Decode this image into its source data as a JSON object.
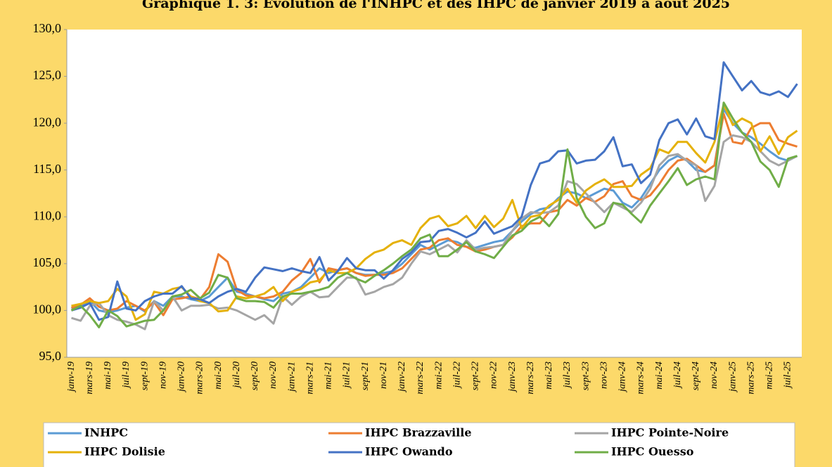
{
  "chart_data": {
    "type": "line",
    "title": "Graphique 1. 3: Evolution de l'INHPC et des IHPC de janvier 2019 à août 2025",
    "categories": [
      "janv-19",
      null,
      "mars-19",
      null,
      "mai-19",
      null,
      "juil-19",
      null,
      "sept-19",
      null,
      "nov-19",
      null,
      "janv-20",
      null,
      "mars-20",
      null,
      "mai-20",
      null,
      "juil-20",
      null,
      "sept-20",
      null,
      "nov-20",
      null,
      "janv-21",
      null,
      "mars-21",
      null,
      "mai-21",
      null,
      "juil-21",
      null,
      "sept-21",
      null,
      "nov-21",
      null,
      "janv-22",
      null,
      "mars-22",
      null,
      "mai-22",
      null,
      "juil-22",
      null,
      "sept-22",
      null,
      "nov-22",
      null,
      "janv-23",
      null,
      "mars-23",
      null,
      "mai-23",
      null,
      "juil-23",
      null,
      "sept-23",
      null,
      "nov-23",
      null,
      "janv-24",
      null,
      "mars-24",
      null,
      "mai-24",
      null,
      "juil-24",
      null,
      "sept-24",
      null,
      "nov-24",
      null,
      "janv-25",
      null,
      "mars-25",
      null,
      "mai-25",
      null,
      "juil-25",
      null
    ],
    "series": [
      {
        "name": "INHPC",
        "color": "#5b9bd5",
        "values": [
          100.2,
          100.5,
          101.0,
          100.0,
          99.8,
          100.0,
          100.3,
          100.5,
          99.9,
          101.0,
          100.5,
          101.5,
          101.5,
          101.2,
          101.0,
          101.5,
          102.5,
          103.5,
          102.0,
          101.8,
          101.5,
          101.2,
          101.0,
          101.8,
          102.0,
          102.5,
          103.5,
          104.5,
          104.0,
          104.3,
          104.5,
          104.0,
          103.8,
          103.8,
          104.0,
          104.2,
          105.0,
          106.0,
          107.0,
          106.5,
          107.0,
          107.5,
          107.3,
          106.8,
          106.7,
          107.0,
          107.3,
          107.5,
          108.5,
          109.5,
          110.3,
          110.8,
          111.0,
          112.0,
          112.7,
          112.5,
          112.0,
          112.5,
          113.0,
          112.8,
          111.5,
          111.0,
          112.0,
          113.5,
          115.0,
          116.0,
          116.5,
          116.0,
          115.0,
          114.8,
          115.5,
          121.5,
          120.0,
          119.0,
          118.5,
          117.8,
          117.0,
          116.3,
          116.0,
          116.5
        ]
      },
      {
        "name": "IHPC Brazzaville",
        "color": "#ed7d31",
        "values": [
          100.3,
          100.6,
          101.3,
          100.4,
          100.0,
          100.2,
          101.0,
          100.5,
          100.0,
          100.9,
          99.5,
          101.2,
          101.3,
          101.5,
          101.2,
          102.5,
          106.0,
          105.2,
          102.2,
          101.6,
          101.5,
          101.3,
          101.5,
          102.0,
          103.2,
          104.0,
          105.5,
          103.0,
          104.5,
          104.3,
          104.5,
          104.0,
          103.7,
          103.8,
          103.8,
          104.0,
          104.5,
          105.5,
          106.5,
          106.7,
          107.5,
          107.7,
          107.0,
          106.8,
          106.3,
          106.5,
          106.8,
          107.0,
          107.8,
          109.0,
          109.3,
          109.3,
          110.5,
          110.7,
          111.8,
          111.2,
          112.0,
          111.6,
          112.2,
          113.5,
          113.8,
          112.2,
          111.8,
          112.3,
          113.5,
          115.0,
          116.0,
          116.2,
          115.5,
          114.8,
          115.5,
          121.0,
          118.0,
          117.8,
          119.5,
          120.0,
          120.0,
          118.2,
          117.8,
          117.5
        ]
      },
      {
        "name": "IHPC Pointe-Noire",
        "color": "#a5a5a5",
        "values": [
          99.2,
          98.9,
          100.5,
          100.8,
          99.5,
          99.0,
          98.8,
          98.5,
          98.0,
          101.0,
          100.0,
          101.5,
          100.0,
          100.5,
          100.5,
          100.6,
          100.2,
          100.3,
          100.0,
          99.5,
          99.0,
          99.5,
          98.6,
          101.5,
          100.6,
          101.5,
          102.0,
          101.4,
          101.5,
          102.5,
          103.5,
          103.5,
          101.7,
          102.0,
          102.5,
          102.8,
          103.5,
          105.0,
          106.3,
          106.0,
          106.5,
          107.0,
          106.2,
          107.5,
          106.5,
          106.7,
          106.8,
          107.0,
          108.5,
          109.8,
          110.5,
          110.4,
          110.5,
          111.2,
          113.8,
          113.5,
          112.5,
          111.5,
          110.5,
          111.5,
          111.0,
          110.5,
          111.5,
          113.0,
          115.5,
          116.5,
          116.7,
          116.0,
          115.5,
          111.7,
          113.3,
          118.0,
          118.7,
          118.5,
          118.0,
          117.0,
          116.0,
          115.5,
          116.0,
          116.5
        ]
      },
      {
        "name": "IHPC Dolisie",
        "color": "#e5b10a",
        "values": [
          100.5,
          100.7,
          101.0,
          100.8,
          101.0,
          102.3,
          101.5,
          99.0,
          99.6,
          102.0,
          101.8,
          102.3,
          102.5,
          101.5,
          101.0,
          100.8,
          99.9,
          100.0,
          101.5,
          101.3,
          101.5,
          101.8,
          102.5,
          101.0,
          102.0,
          102.3,
          103.0,
          103.2,
          104.3,
          104.0,
          104.0,
          104.5,
          105.5,
          106.2,
          106.5,
          107.2,
          107.5,
          107.0,
          108.8,
          109.8,
          110.1,
          109.0,
          109.3,
          110.1,
          108.8,
          110.1,
          108.9,
          109.8,
          111.8,
          108.8,
          110.0,
          110.2,
          111.2,
          111.8,
          113.0,
          111.5,
          112.8,
          113.5,
          114.0,
          113.2,
          113.2,
          113.3,
          114.5,
          115.2,
          117.2,
          116.8,
          118.0,
          118.0,
          116.8,
          115.8,
          118.0,
          122.0,
          119.8,
          120.5,
          120.0,
          117.0,
          118.6,
          116.7,
          118.5,
          119.2
        ]
      },
      {
        "name": "IHPC Owando",
        "color": "#4472c4",
        "values": [
          100.0,
          100.3,
          100.8,
          99.0,
          99.3,
          103.1,
          100.2,
          100.0,
          101.0,
          101.5,
          101.8,
          101.8,
          102.6,
          101.3,
          101.2,
          100.8,
          101.5,
          102.0,
          102.3,
          102.0,
          103.5,
          104.6,
          104.4,
          104.2,
          104.5,
          104.2,
          104.0,
          105.7,
          103.2,
          104.2,
          105.6,
          104.5,
          104.3,
          104.3,
          103.4,
          104.3,
          105.5,
          106.2,
          107.3,
          107.4,
          108.5,
          108.7,
          108.3,
          107.8,
          108.3,
          109.5,
          108.2,
          108.6,
          109.0,
          110.0,
          113.4,
          115.7,
          116.0,
          117.0,
          117.1,
          115.7,
          116.0,
          116.1,
          117.0,
          118.5,
          115.4,
          115.6,
          113.6,
          114.5,
          118.2,
          120.0,
          120.4,
          118.8,
          120.5,
          118.6,
          118.3,
          126.5,
          125.0,
          123.5,
          124.5,
          123.3,
          123.0,
          123.4,
          122.8,
          124.2
        ]
      },
      {
        "name": "IHPC Ouesso",
        "color": "#70ad47",
        "values": [
          100.0,
          100.5,
          99.5,
          98.2,
          100.0,
          99.4,
          98.3,
          98.6,
          98.9,
          99.0,
          100.0,
          101.5,
          101.7,
          102.2,
          101.3,
          101.9,
          103.8,
          103.5,
          101.3,
          101.0,
          101.0,
          100.9,
          100.3,
          101.5,
          101.8,
          101.8,
          102.0,
          102.2,
          102.5,
          103.5,
          104.0,
          103.4,
          103.0,
          103.7,
          104.3,
          105.0,
          105.8,
          106.5,
          107.7,
          108.1,
          105.8,
          105.8,
          106.5,
          107.3,
          106.3,
          106.0,
          105.6,
          106.8,
          108.0,
          108.5,
          109.5,
          110.0,
          109.0,
          110.3,
          117.2,
          112.0,
          110.0,
          108.8,
          109.3,
          111.5,
          111.3,
          110.3,
          109.4,
          111.2,
          112.5,
          113.8,
          115.2,
          113.4,
          114.0,
          114.3,
          114.0,
          122.2,
          120.5,
          119.0,
          118.0,
          115.9,
          115.0,
          113.2,
          116.2,
          116.5
        ]
      }
    ],
    "ylim": [
      95,
      130
    ],
    "yticks": [
      {
        "value": 95,
        "label": "95,0"
      },
      {
        "value": 100,
        "label": "100,0"
      },
      {
        "value": 105,
        "label": "105,0"
      },
      {
        "value": 110,
        "label": "110,0"
      },
      {
        "value": 115,
        "label": "115,0"
      },
      {
        "value": 120,
        "label": "120,0"
      },
      {
        "value": 125,
        "label": "125,0"
      },
      {
        "value": 130,
        "label": "130,0"
      }
    ],
    "grid": false,
    "legend": "bottom"
  }
}
